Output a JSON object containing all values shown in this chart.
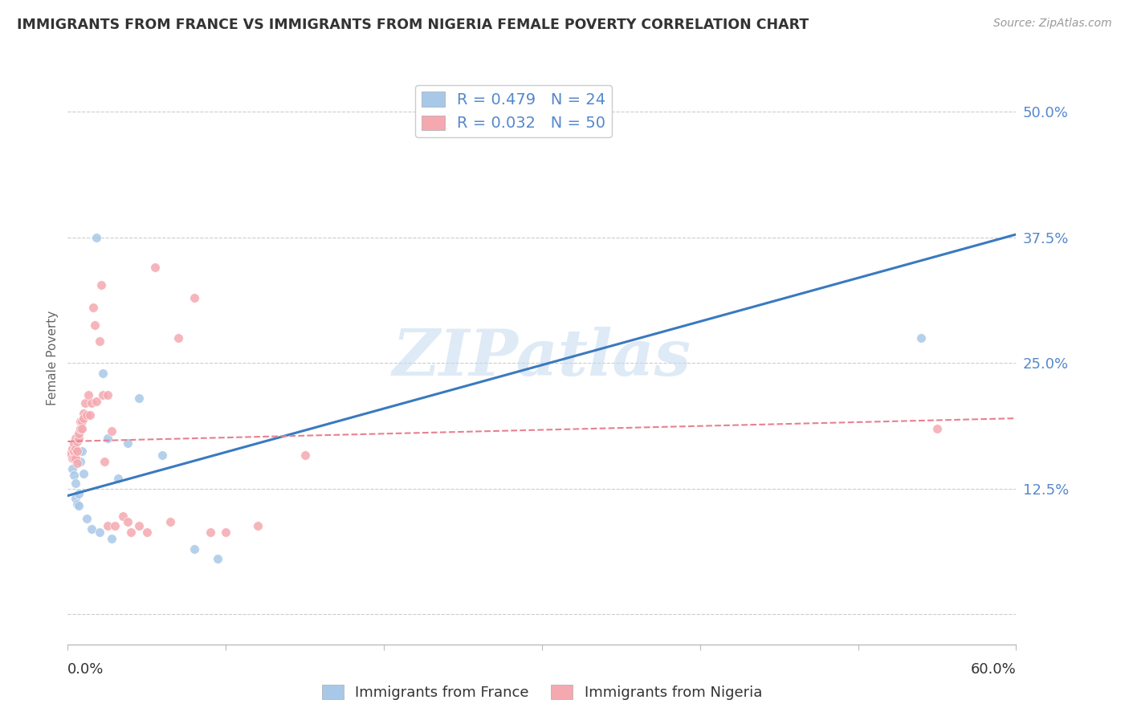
{
  "title": "IMMIGRANTS FROM FRANCE VS IMMIGRANTS FROM NIGERIA FEMALE POVERTY CORRELATION CHART",
  "source": "Source: ZipAtlas.com",
  "ylabel": "Female Poverty",
  "ytick_vals": [
    0.0,
    0.125,
    0.25,
    0.375,
    0.5
  ],
  "ytick_labels": [
    "",
    "12.5%",
    "25.0%",
    "37.5%",
    "50.0%"
  ],
  "xmin": 0.0,
  "xmax": 0.6,
  "ymin": -0.03,
  "ymax": 0.54,
  "france_color": "#a8c8e8",
  "france_line_color": "#3a7abf",
  "nigeria_color": "#f5a8b0",
  "nigeria_line_color": "#e88090",
  "tick_label_color": "#5588cc",
  "france_R": "0.479",
  "france_N": "24",
  "nigeria_R": "0.032",
  "nigeria_N": "50",
  "watermark": "ZIPatlas",
  "france_scatter_x": [
    0.003,
    0.004,
    0.005,
    0.005,
    0.006,
    0.007,
    0.007,
    0.008,
    0.009,
    0.01,
    0.012,
    0.015,
    0.018,
    0.02,
    0.022,
    0.025,
    0.028,
    0.032,
    0.038,
    0.045,
    0.06,
    0.08,
    0.095,
    0.54
  ],
  "france_scatter_y": [
    0.145,
    0.138,
    0.13,
    0.115,
    0.11,
    0.12,
    0.108,
    0.152,
    0.162,
    0.14,
    0.095,
    0.085,
    0.375,
    0.082,
    0.24,
    0.175,
    0.075,
    0.135,
    0.17,
    0.215,
    0.158,
    0.065,
    0.055,
    0.275
  ],
  "nigeria_scatter_x": [
    0.002,
    0.003,
    0.003,
    0.004,
    0.004,
    0.004,
    0.005,
    0.005,
    0.005,
    0.006,
    0.006,
    0.006,
    0.007,
    0.007,
    0.008,
    0.008,
    0.009,
    0.009,
    0.01,
    0.01,
    0.011,
    0.012,
    0.013,
    0.014,
    0.015,
    0.016,
    0.017,
    0.018,
    0.02,
    0.021,
    0.022,
    0.023,
    0.025,
    0.025,
    0.028,
    0.03,
    0.035,
    0.038,
    0.04,
    0.045,
    0.05,
    0.055,
    0.065,
    0.07,
    0.08,
    0.09,
    0.1,
    0.12,
    0.15,
    0.55
  ],
  "nigeria_scatter_y": [
    0.16,
    0.155,
    0.165,
    0.155,
    0.162,
    0.17,
    0.155,
    0.165,
    0.175,
    0.15,
    0.162,
    0.172,
    0.175,
    0.18,
    0.192,
    0.185,
    0.192,
    0.185,
    0.2,
    0.195,
    0.21,
    0.198,
    0.218,
    0.198,
    0.21,
    0.305,
    0.288,
    0.212,
    0.272,
    0.328,
    0.218,
    0.152,
    0.088,
    0.218,
    0.182,
    0.088,
    0.098,
    0.092,
    0.082,
    0.088,
    0.082,
    0.345,
    0.092,
    0.275,
    0.315,
    0.082,
    0.082,
    0.088,
    0.158,
    0.185
  ],
  "france_line_x0": 0.0,
  "france_line_x1": 0.6,
  "france_line_y0": 0.118,
  "france_line_y1": 0.378,
  "nigeria_line_x0": 0.0,
  "nigeria_line_x1": 0.6,
  "nigeria_line_y0": 0.172,
  "nigeria_line_y1": 0.195
}
